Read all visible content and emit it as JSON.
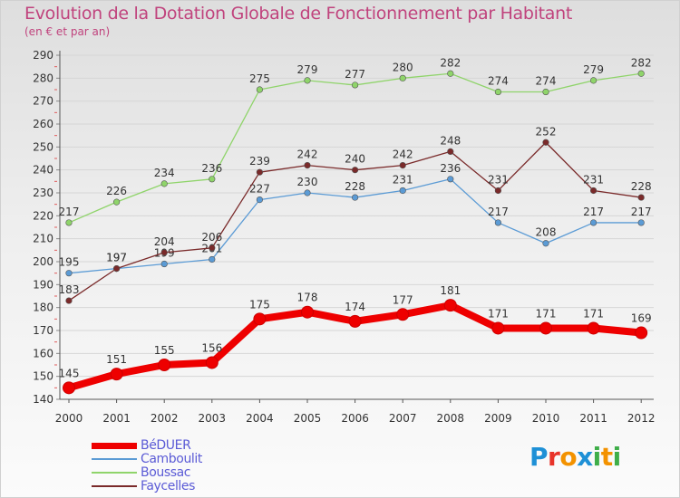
{
  "title": "Evolution de la Dotation Globale de Fonctionnement par Habitant",
  "subtitle": "(en € et par an)",
  "logo": {
    "text": "Proxiti",
    "letters": [
      {
        "ch": "P",
        "color": "#1e90d6"
      },
      {
        "ch": "r",
        "color": "#e8342a"
      },
      {
        "ch": "o",
        "color": "#f39200"
      },
      {
        "ch": "x",
        "color": "#1e90d6"
      },
      {
        "ch": "i",
        "color": "#3fae49"
      },
      {
        "ch": "t",
        "color": "#f39200"
      },
      {
        "ch": "i",
        "color": "#3fae49"
      }
    ]
  },
  "chart_data": {
    "type": "line",
    "title": "Evolution de la Dotation Globale de Fonctionnement par Habitant",
    "subtitle": "(en € et par an)",
    "xlabel": "",
    "ylabel": "",
    "categories": [
      "2000",
      "2001",
      "2002",
      "2003",
      "2004",
      "2005",
      "2006",
      "2007",
      "2008",
      "2009",
      "2010",
      "2011",
      "2012"
    ],
    "ylim": [
      140,
      290
    ],
    "yticks": [
      140,
      150,
      160,
      170,
      180,
      190,
      200,
      210,
      220,
      230,
      240,
      250,
      260,
      270,
      280,
      290
    ],
    "grid": "horizontal",
    "legend_position": "bottom-left",
    "series": [
      {
        "name": "BéDUER",
        "color": "#ee0000",
        "emphasis": true,
        "values": [
          145,
          151,
          155,
          156,
          175,
          178,
          174,
          177,
          181,
          171,
          171,
          171,
          169
        ]
      },
      {
        "name": "Camboulit",
        "color": "#5b9bd5",
        "emphasis": false,
        "values": [
          195,
          197,
          199,
          201,
          227,
          230,
          228,
          231,
          236,
          217,
          208,
          217,
          217
        ]
      },
      {
        "name": "Boussac",
        "color": "#8fd46a",
        "emphasis": false,
        "values": [
          217,
          226,
          234,
          236,
          275,
          279,
          277,
          280,
          282,
          274,
          274,
          279,
          282
        ]
      },
      {
        "name": "Faycelles",
        "color": "#7a2a2a",
        "emphasis": false,
        "values": [
          183,
          197,
          204,
          206,
          239,
          242,
          240,
          242,
          248,
          231,
          252,
          231,
          228
        ]
      }
    ]
  }
}
